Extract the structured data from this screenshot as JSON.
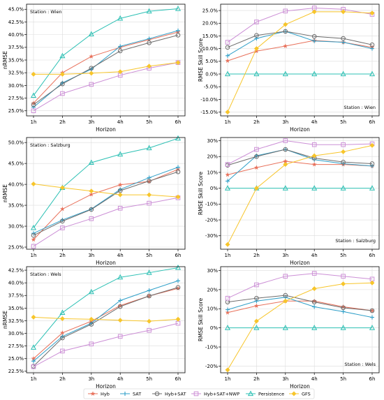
{
  "chart_data": [
    {
      "type": "line",
      "categories": [
        "1h",
        "2h",
        "3h",
        "4h",
        "5h",
        "6h"
      ],
      "xlabel": "Horizon",
      "ylabel": "nRMSE",
      "annotation": "Station : Wien",
      "ylim": [
        0.24,
        0.46
      ],
      "yticks": [
        0.25,
        0.275,
        0.3,
        0.325,
        0.35,
        0.375,
        0.4,
        0.425,
        0.45
      ],
      "ytick_labels": [
        "25.0%",
        "27.5%",
        "30.0%",
        "32.5%",
        "35.0%",
        "37.5%",
        "40.0%",
        "42.5%",
        "45.0%"
      ],
      "grid": true,
      "series": [
        {
          "name": "Hyb",
          "values": [
            0.265,
            0.325,
            0.357,
            0.375,
            0.39,
            0.405
          ]
        },
        {
          "name": "SAT",
          "values": [
            0.257,
            0.305,
            0.332,
            0.377,
            0.392,
            0.408
          ]
        },
        {
          "name": "Hyb+SAT",
          "values": [
            0.262,
            0.303,
            0.334,
            0.368,
            0.384,
            0.399
          ]
        },
        {
          "name": "Hyb+SAT+NWP",
          "values": [
            0.25,
            0.284,
            0.302,
            0.32,
            0.334,
            0.345
          ]
        },
        {
          "name": "Persistence",
          "values": [
            0.28,
            0.358,
            0.401,
            0.432,
            0.446,
            0.451
          ]
        },
        {
          "name": "GFS",
          "values": [
            0.322,
            0.322,
            0.324,
            0.327,
            0.338,
            0.345
          ]
        }
      ]
    },
    {
      "type": "line",
      "categories": [
        "1h",
        "2h",
        "3h",
        "4h",
        "5h",
        "6h"
      ],
      "xlabel": "Horizon",
      "ylabel": "RMSE Skill Score",
      "annotation": "Station : Wien",
      "ylim": [
        -0.165,
        0.275
      ],
      "yticks": [
        -0.15,
        -0.1,
        -0.05,
        0.0,
        0.05,
        0.1,
        0.15,
        0.2,
        0.25
      ],
      "ytick_labels": [
        "-15.0%",
        "-10.0%",
        "-5.0%",
        "0.0%",
        "5.0%",
        "10.0%",
        "15.0%",
        "20.0%",
        "25.0%"
      ],
      "grid": true,
      "series": [
        {
          "name": "Hyb",
          "values": [
            0.052,
            0.09,
            0.11,
            0.132,
            0.125,
            0.105
          ]
        },
        {
          "name": "SAT",
          "values": [
            0.072,
            0.14,
            0.168,
            0.13,
            0.125,
            0.1
          ]
        },
        {
          "name": "Hyb+SAT",
          "values": [
            0.105,
            0.152,
            0.168,
            0.148,
            0.14,
            0.115
          ]
        },
        {
          "name": "Hyb+SAT+NWP",
          "values": [
            0.125,
            0.205,
            0.248,
            0.26,
            0.255,
            0.235
          ]
        },
        {
          "name": "Persistence",
          "values": [
            0.0,
            0.0,
            0.0,
            0.0,
            0.0,
            0.0
          ]
        },
        {
          "name": "GFS",
          "values": [
            -0.15,
            0.1,
            0.195,
            0.245,
            0.245,
            0.24
          ]
        }
      ]
    },
    {
      "type": "line",
      "categories": [
        "1h",
        "2h",
        "3h",
        "4h",
        "5h",
        "6h"
      ],
      "xlabel": "Horizon",
      "ylabel": "nRMSE",
      "annotation": "Station : Salzburg",
      "ylim": [
        0.245,
        0.512
      ],
      "yticks": [
        0.25,
        0.3,
        0.35,
        0.4,
        0.45,
        0.5
      ],
      "ytick_labels": [
        "25.0%",
        "30.0%",
        "35.0%",
        "40.0%",
        "45.0%",
        "50.0%"
      ],
      "grid": true,
      "series": [
        {
          "name": "Hyb",
          "values": [
            0.268,
            0.341,
            0.376,
            0.399,
            0.407,
            0.436
          ]
        },
        {
          "name": "SAT",
          "values": [
            0.283,
            0.315,
            0.341,
            0.388,
            0.416,
            0.441
          ]
        },
        {
          "name": "Hyb+SAT",
          "values": [
            0.278,
            0.312,
            0.34,
            0.385,
            0.408,
            0.43
          ]
        },
        {
          "name": "Hyb+SAT+NWP",
          "values": [
            0.252,
            0.296,
            0.318,
            0.343,
            0.355,
            0.368
          ]
        },
        {
          "name": "Persistence",
          "values": [
            0.296,
            0.392,
            0.452,
            0.472,
            0.487,
            0.51
          ]
        },
        {
          "name": "GFS",
          "values": [
            0.401,
            0.392,
            0.384,
            0.375,
            0.375,
            0.37
          ]
        }
      ]
    },
    {
      "type": "line",
      "categories": [
        "1h",
        "2h",
        "3h",
        "4h",
        "5h",
        "6h"
      ],
      "xlabel": "Horizon",
      "ylabel": "RMSE Skill Score",
      "annotation": "Station : Salzburg",
      "ylim": [
        -0.385,
        0.32
      ],
      "yticks": [
        -0.3,
        -0.2,
        -0.1,
        0.0,
        0.1,
        0.2,
        0.3
      ],
      "ytick_labels": [
        "-30%",
        "-20%",
        "-10%",
        "0%",
        "10%",
        "20%",
        "30%"
      ],
      "grid": true,
      "series": [
        {
          "name": "Hyb",
          "values": [
            0.085,
            0.13,
            0.17,
            0.15,
            0.15,
            0.14
          ]
        },
        {
          "name": "SAT",
          "values": [
            0.045,
            0.205,
            0.245,
            0.18,
            0.155,
            0.14
          ]
        },
        {
          "name": "Hyb+SAT",
          "values": [
            0.145,
            0.2,
            0.245,
            0.19,
            0.165,
            0.155
          ]
        },
        {
          "name": "Hyb+SAT+NWP",
          "values": [
            0.15,
            0.245,
            0.3,
            0.275,
            0.275,
            0.28
          ]
        },
        {
          "name": "Persistence",
          "values": [
            0.0,
            0.0,
            0.0,
            0.0,
            0.0,
            0.0
          ]
        },
        {
          "name": "GFS",
          "values": [
            -0.355,
            0.0,
            0.15,
            0.205,
            0.23,
            0.27
          ]
        }
      ]
    },
    {
      "type": "line",
      "categories": [
        "1h",
        "2h",
        "3h",
        "4h",
        "5h",
        "6h"
      ],
      "xlabel": "Horizon",
      "ylabel": "nRMSE",
      "annotation": "Station : Wels",
      "ylim": [
        0.222,
        0.432
      ],
      "yticks": [
        0.225,
        0.25,
        0.275,
        0.3,
        0.325,
        0.35,
        0.375,
        0.4,
        0.425
      ],
      "ytick_labels": [
        "22.5%",
        "25.0%",
        "27.5%",
        "30.0%",
        "32.5%",
        "35.0%",
        "37.5%",
        "40.0%",
        "42.5%"
      ],
      "grid": true,
      "series": [
        {
          "name": "Hyb",
          "values": [
            0.25,
            0.301,
            0.324,
            0.355,
            0.374,
            0.389
          ]
        },
        {
          "name": "SAT",
          "values": [
            0.245,
            0.294,
            0.32,
            0.365,
            0.385,
            0.404
          ]
        },
        {
          "name": "Hyb+SAT",
          "values": [
            0.235,
            0.291,
            0.318,
            0.353,
            0.374,
            0.391
          ]
        },
        {
          "name": "Hyb+SAT+NWP",
          "values": [
            0.234,
            0.265,
            0.279,
            0.294,
            0.306,
            0.32
          ]
        },
        {
          "name": "Persistence",
          "values": [
            0.272,
            0.341,
            0.382,
            0.411,
            0.42,
            0.43
          ]
        },
        {
          "name": "GFS",
          "values": [
            0.332,
            0.329,
            0.328,
            0.326,
            0.324,
            0.328
          ]
        }
      ]
    },
    {
      "type": "line",
      "categories": [
        "1h",
        "2h",
        "3h",
        "4h",
        "5h",
        "6h"
      ],
      "xlabel": "Horizon",
      "ylabel": "RMSE Skill Score",
      "annotation": "Station : Wels",
      "ylim": [
        -0.235,
        0.32
      ],
      "yticks": [
        -0.2,
        -0.1,
        0.0,
        0.1,
        0.2,
        0.3
      ],
      "ytick_labels": [
        "-20%",
        "-10%",
        "0%",
        "10%",
        "20%",
        "30%"
      ],
      "grid": true,
      "series": [
        {
          "name": "Hyb",
          "values": [
            0.08,
            0.115,
            0.14,
            0.14,
            0.11,
            0.09
          ]
        },
        {
          "name": "SAT",
          "values": [
            0.095,
            0.14,
            0.16,
            0.11,
            0.085,
            0.055
          ]
        },
        {
          "name": "Hyb+SAT",
          "values": [
            0.135,
            0.155,
            0.17,
            0.135,
            0.105,
            0.09
          ]
        },
        {
          "name": "Hyb+SAT+NWP",
          "values": [
            0.155,
            0.225,
            0.27,
            0.285,
            0.27,
            0.255
          ]
        },
        {
          "name": "Persistence",
          "values": [
            0.0,
            0.0,
            0.0,
            0.0,
            0.0,
            0.0
          ]
        },
        {
          "name": "GFS",
          "values": [
            -0.22,
            0.035,
            0.14,
            0.205,
            0.23,
            0.235
          ]
        }
      ]
    }
  ],
  "legend": {
    "placement": "bottom",
    "items": [
      {
        "name": "Hyb",
        "color": "#e8705a",
        "marker": "star"
      },
      {
        "name": "SAT",
        "color": "#2f9fc8",
        "marker": "plus"
      },
      {
        "name": "Hyb+SAT",
        "color": "#6b6b6b",
        "marker": "circle"
      },
      {
        "name": "Hyb+SAT+NWP",
        "color": "#cc8fd6",
        "marker": "square"
      },
      {
        "name": "Persistence",
        "color": "#2cc0b4",
        "marker": "triangle"
      },
      {
        "name": "GFS",
        "color": "#f7c52a",
        "marker": "diamond"
      }
    ]
  }
}
